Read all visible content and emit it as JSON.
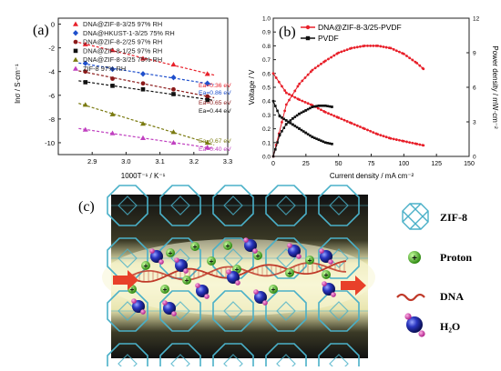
{
  "panel_a": {
    "label": "(a)",
    "ylabel": "lnσ / S·cm⁻¹",
    "xlabel": "1000T⁻¹ / K⁻¹",
    "legend": [
      "DNA@ZIF-8-3/25  97% RH",
      "DNA@HKUST-1-3/25  75% RH",
      "DNA@ZIF-8-2/25  97% RH",
      "DNA@ZIF-8-1/25  97% RH",
      "DNA@ZIF-8-3/25  75% RH",
      "ZIF-8  97% RH"
    ],
    "ea": [
      "Ea=0.36 eV",
      "Ea=0.86 eV",
      "Ea=0.65 eV",
      "Ea=0.44 eV",
      "Ea=0.67 eV",
      "Ea=0.40 eV"
    ],
    "xticks": [
      "2.9",
      "3.0",
      "3.1",
      "3.2",
      "3.3"
    ],
    "yticks": [
      "0",
      "-2",
      "-4",
      "-6",
      "-8",
      "-10"
    ]
  },
  "panel_b": {
    "label": "(b)",
    "ylabel_left": "Voltage / V",
    "ylabel_right": "Power density / mW·cm⁻²",
    "xlabel": "Current density / mA cm⁻²",
    "legend": [
      "DNA@ZIF-8-3/25-PVDF",
      "PVDF"
    ],
    "xticks": [
      "0",
      "25",
      "50",
      "75",
      "100",
      "125",
      "150"
    ],
    "yticks_left": [
      "0.0",
      "0.1",
      "0.2",
      "0.3",
      "0.4",
      "0.5",
      "0.6",
      "0.7",
      "0.8",
      "0.9",
      "1.0"
    ],
    "yticks_right": [
      "0",
      "3",
      "6",
      "9",
      "12"
    ]
  },
  "panel_c": {
    "label": "(c)",
    "legend": [
      "ZIF-8",
      "Proton",
      "DNA",
      "H₂O"
    ]
  },
  "colors": {
    "red": "#e8202a",
    "blue": "#1f4fcc",
    "dark": "#8b1a1a",
    "black": "#111111",
    "olive": "#7a7a10",
    "magenta": "#c040c0",
    "framework": "#4ab0c8",
    "dna": "#c03a2a",
    "proton": "#3a9a2a"
  },
  "chart_data": [
    {
      "type": "scatter",
      "panel": "a",
      "xlabel": "1000T⁻¹ / K⁻¹",
      "ylabel": "lnσ / S·cm⁻¹",
      "xlim": [
        2.8,
        3.3
      ],
      "ylim": [
        -11,
        0.5
      ],
      "series": [
        {
          "name": "DNA@ZIF-8-3/25  97% RH",
          "x": [
            2.88,
            2.96,
            3.05,
            3.14,
            3.24
          ],
          "y": [
            -1.7,
            -2.2,
            -2.9,
            -3.4,
            -4.2
          ]
        },
        {
          "name": "DNA@HKUST-1-3/25  75% RH",
          "x": [
            2.88,
            2.96,
            3.05,
            3.14,
            3.24
          ],
          "y": [
            -3.3,
            -3.8,
            -4.2,
            -4.5,
            -5.0
          ]
        },
        {
          "name": "DNA@ZIF-8-2/25  97% RH",
          "x": [
            2.88,
            2.96,
            3.05,
            3.14,
            3.24
          ],
          "y": [
            -4.0,
            -4.6,
            -5.0,
            -5.5,
            -6.1
          ]
        },
        {
          "name": "DNA@ZIF-8-1/25  97% RH",
          "x": [
            2.88,
            2.96,
            3.05,
            3.14,
            3.24
          ],
          "y": [
            -4.9,
            -5.2,
            -5.5,
            -5.9,
            -6.4
          ]
        },
        {
          "name": "DNA@ZIF-8-3/25  75% RH",
          "x": [
            2.88,
            2.96,
            3.05,
            3.14,
            3.24
          ],
          "y": [
            -6.8,
            -7.6,
            -8.4,
            -9.1,
            -10.0
          ]
        },
        {
          "name": "ZIF-8  97% RH",
          "x": [
            2.88,
            2.96,
            3.05,
            3.14,
            3.24
          ],
          "y": [
            -8.9,
            -9.2,
            -9.6,
            -10.0,
            -10.4
          ]
        }
      ]
    },
    {
      "type": "line",
      "panel": "b",
      "xlabel": "Current density / mA cm⁻²",
      "ylabel": "Voltage / V",
      "ylabel_right": "Power density / mW·cm⁻²",
      "xlim": [
        0,
        150
      ],
      "ylim": [
        0,
        1.0
      ],
      "ylim_right": [
        0,
        12
      ],
      "series": [
        {
          "name": "DNA@ZIF-8-3/25-PVDF",
          "quantity": "voltage",
          "x": [
            0,
            10,
            20,
            30,
            40,
            50,
            60,
            70,
            80,
            90,
            100,
            110,
            115
          ],
          "y": [
            0.6,
            0.46,
            0.41,
            0.37,
            0.32,
            0.28,
            0.24,
            0.2,
            0.16,
            0.13,
            0.11,
            0.09,
            0.08
          ]
        },
        {
          "name": "DNA@ZIF-8-3/25-PVDF",
          "quantity": "power",
          "x": [
            0,
            10,
            20,
            30,
            40,
            50,
            60,
            70,
            80,
            90,
            100,
            110,
            115
          ],
          "y": [
            0,
            4.5,
            6.3,
            7.5,
            8.3,
            9.0,
            9.4,
            9.6,
            9.6,
            9.4,
            8.9,
            8.1,
            7.6
          ]
        },
        {
          "name": "PVDF",
          "quantity": "voltage",
          "x": [
            0,
            5,
            10,
            15,
            20,
            25,
            30,
            35,
            40,
            45
          ],
          "y": [
            0.4,
            0.29,
            0.26,
            0.23,
            0.2,
            0.17,
            0.14,
            0.12,
            0.1,
            0.09
          ]
        },
        {
          "name": "PVDF",
          "quantity": "power",
          "x": [
            0,
            5,
            10,
            15,
            20,
            25,
            30,
            35,
            40,
            45
          ],
          "y": [
            0,
            1.9,
            2.8,
            3.3,
            3.7,
            4.0,
            4.3,
            4.4,
            4.4,
            4.3
          ]
        }
      ]
    }
  ]
}
